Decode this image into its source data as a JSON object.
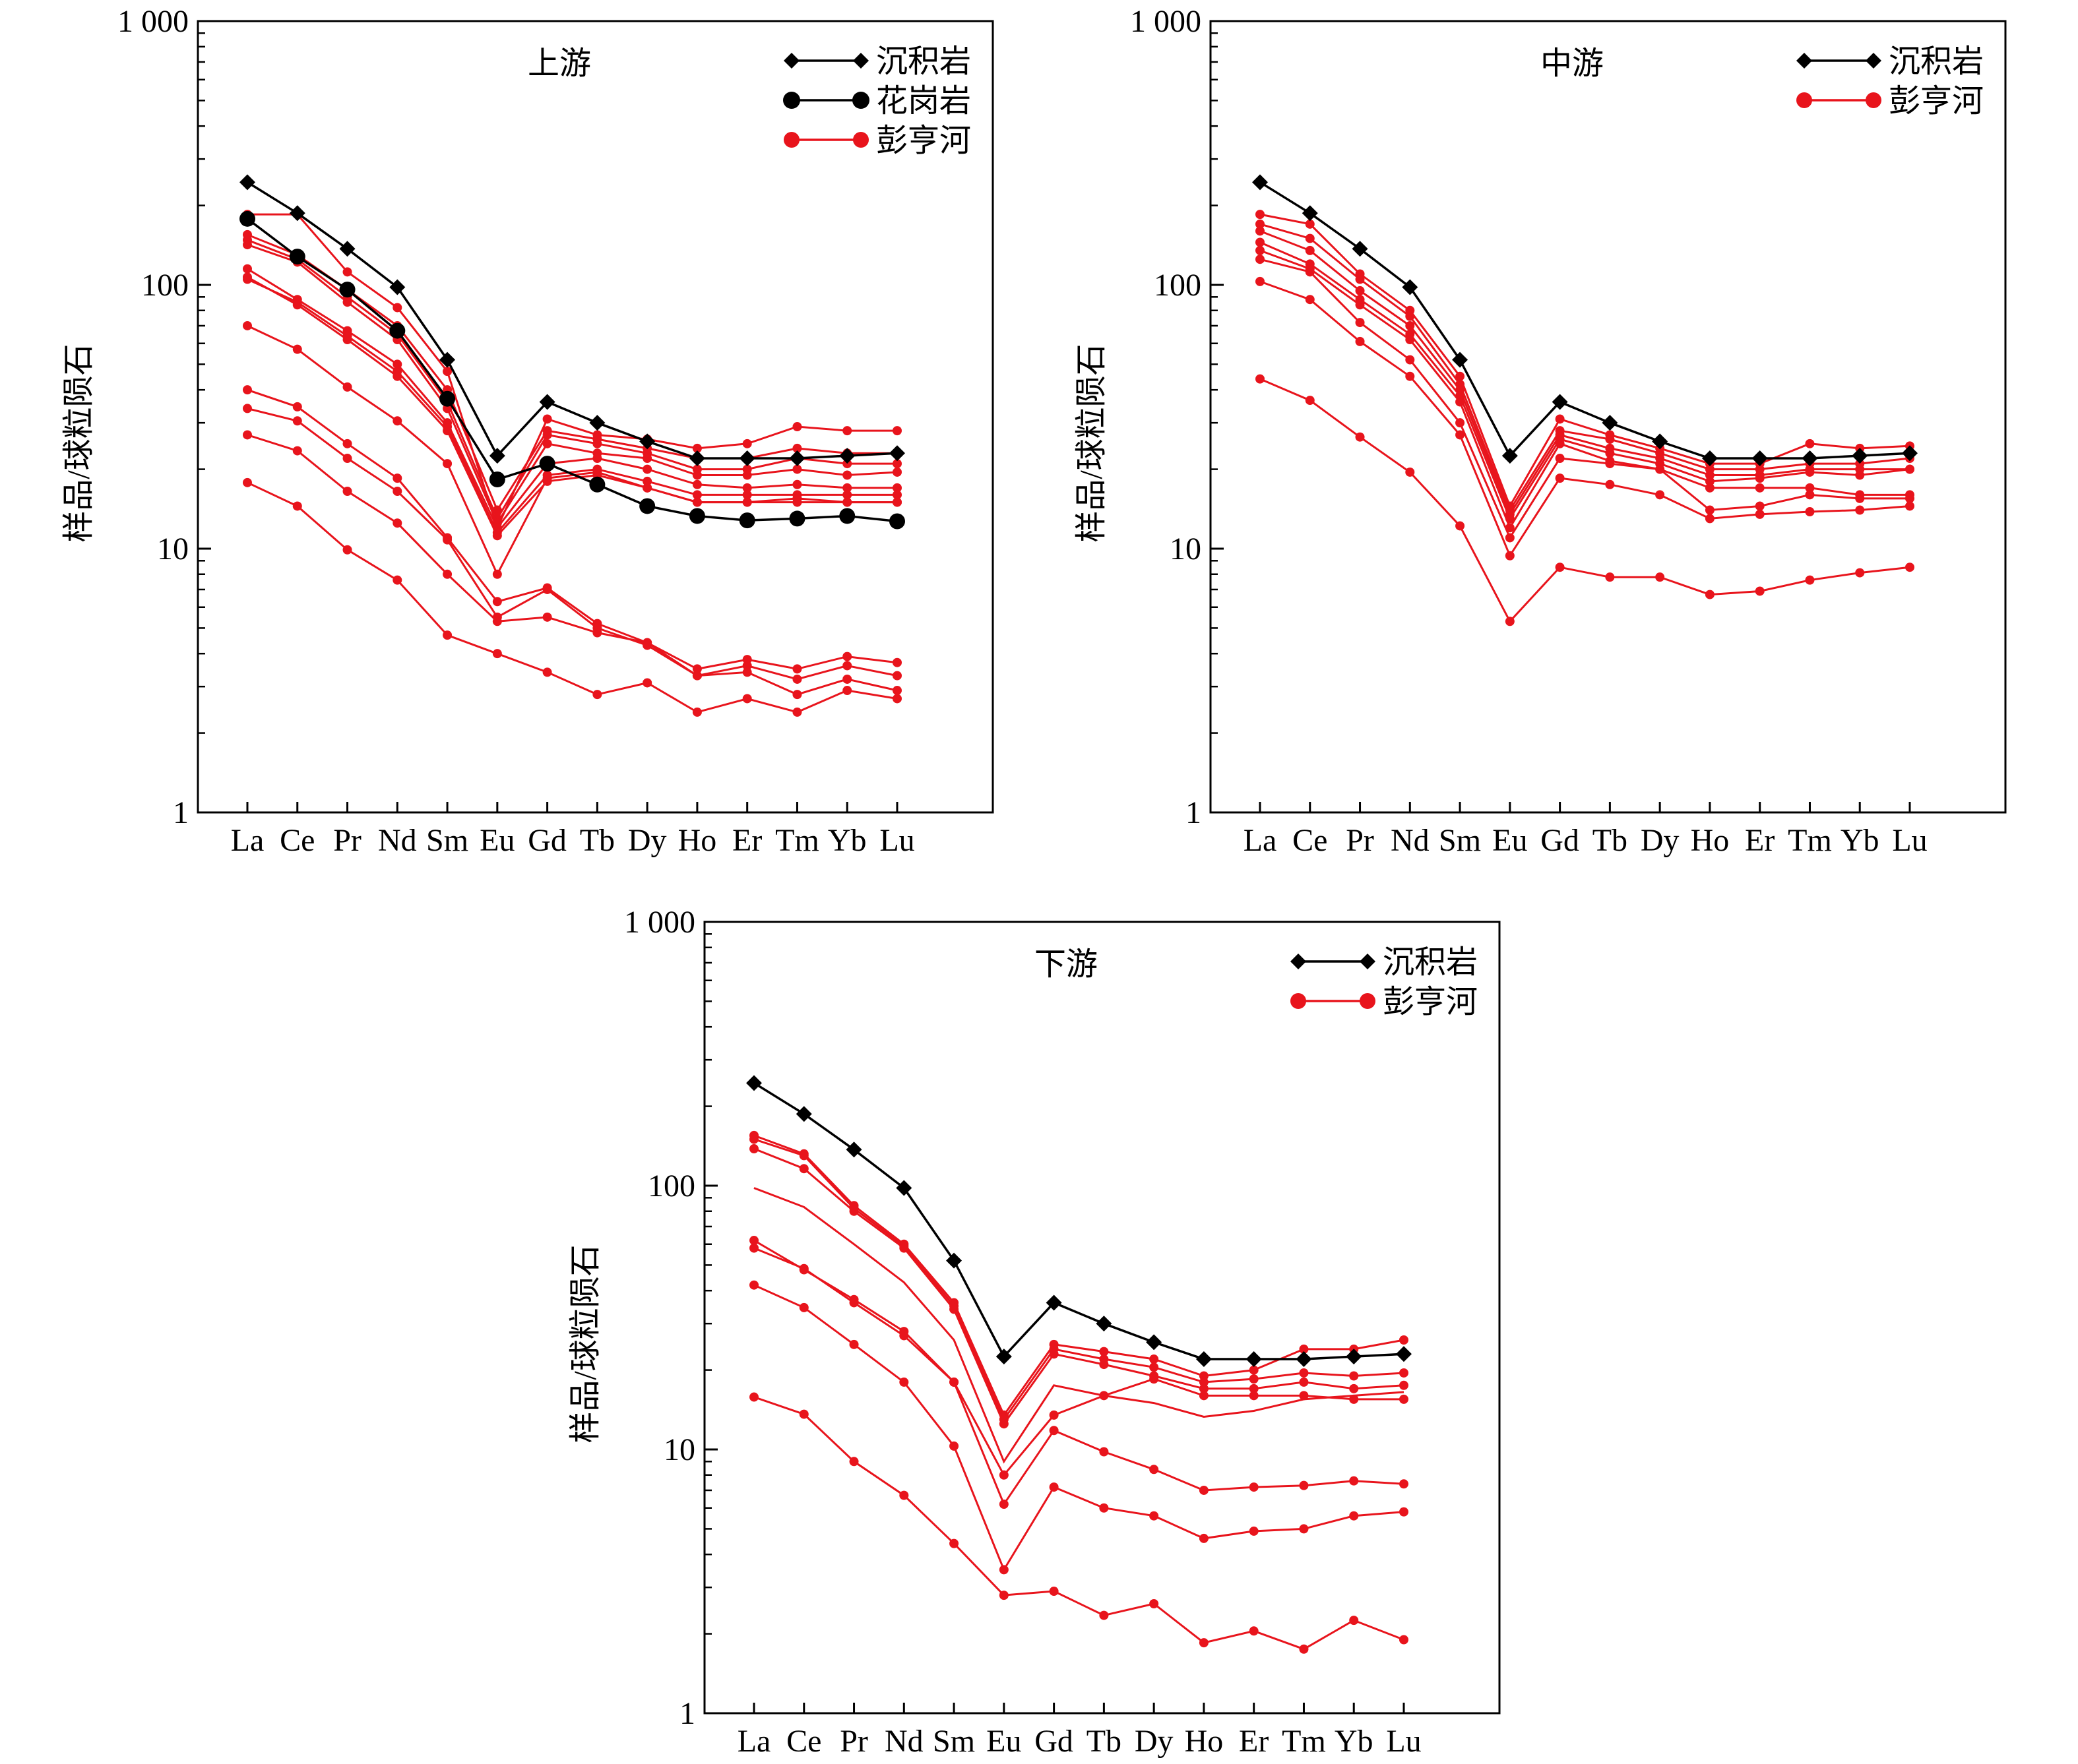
{
  "figure": {
    "colors": {
      "sediment": "#000000",
      "granite": "#000000",
      "river": "#e8141c"
    },
    "categories": [
      "La",
      "Ce",
      "Pr",
      "Nd",
      "Sm",
      "Eu",
      "Gd",
      "Tb",
      "Dy",
      "Ho",
      "Er",
      "Tm",
      "Yb",
      "Lu"
    ],
    "ytick_labels": [
      "1",
      "10",
      "100",
      "1 000"
    ],
    "ylabel": "样品/球粒陨石"
  },
  "chart_data": [
    {
      "type": "line",
      "title": "上游",
      "ylabel": "样品/球粒陨石",
      "ylim": [
        1,
        1000
      ],
      "yscale": "log",
      "categories": [
        "La",
        "Ce",
        "Pr",
        "Nd",
        "Sm",
        "Eu",
        "Gd",
        "Tb",
        "Dy",
        "Ho",
        "Er",
        "Tm",
        "Yb",
        "Lu"
      ],
      "legend": [
        "沉积岩",
        "花岗岩",
        "彭亨河"
      ],
      "legend_position": "top-right",
      "series": [
        {
          "name": "沉积岩",
          "style": "sediment",
          "values": [
            245,
            187,
            137,
            98,
            52,
            22.5,
            36,
            30,
            25.5,
            22,
            22,
            22,
            22.5,
            23
          ]
        },
        {
          "name": "花岗岩",
          "style": "granite",
          "values": [
            178,
            128,
            96,
            67,
            37,
            18.3,
            21,
            17.5,
            14.5,
            13.3,
            12.8,
            13,
            13.3,
            12.7
          ]
        },
        {
          "name": "彭亨河",
          "style": "river",
          "values": [
            185,
            185,
            112,
            82,
            47,
            12,
            31,
            27,
            26,
            24,
            25,
            29,
            28,
            28
          ]
        },
        {
          "name": "彭亨河",
          "style": "river",
          "values": [
            155,
            130,
            96,
            70,
            40,
            14,
            28,
            26,
            24,
            22,
            22,
            24,
            23,
            23
          ]
        },
        {
          "name": "彭亨河",
          "style": "river",
          "values": [
            148,
            125,
            90,
            65,
            36,
            13,
            27,
            25,
            23,
            20,
            20,
            22,
            21,
            21
          ]
        },
        {
          "name": "彭亨河",
          "style": "river",
          "values": [
            142,
            122,
            86,
            62,
            34,
            12.5,
            25,
            23,
            22,
            19,
            19,
            20,
            19,
            19.5
          ]
        },
        {
          "name": "彭亨河",
          "style": "river",
          "values": [
            115,
            88,
            67,
            50,
            30,
            12,
            21,
            22,
            20,
            17.5,
            17,
            17.5,
            17,
            17
          ]
        },
        {
          "name": "彭亨河",
          "style": "river",
          "values": [
            105,
            86,
            64,
            47,
            29,
            11.5,
            19,
            20,
            18,
            16,
            16,
            16,
            16,
            16
          ]
        },
        {
          "name": "彭亨河",
          "style": "river",
          "values": [
            107,
            84,
            62,
            45,
            28,
            11.2,
            18,
            19,
            17,
            15,
            15,
            15.5,
            15,
            15
          ]
        },
        {
          "name": "彭亨河",
          "style": "river",
          "values": [
            70,
            57,
            41,
            30.5,
            21,
            8,
            18.5,
            19.5,
            17,
            15,
            15,
            15,
            15,
            15
          ]
        },
        {
          "name": "彭亨河",
          "style": "river",
          "values": [
            40,
            34.5,
            25,
            18.5,
            11,
            6.3,
            7.1,
            5.2,
            4.4,
            3.5,
            3.8,
            3.5,
            3.9,
            3.7
          ]
        },
        {
          "name": "彭亨河",
          "style": "river",
          "values": [
            34,
            30.5,
            22,
            16.5,
            10.8,
            5.5,
            7,
            5,
            4.3,
            3.3,
            3.6,
            3.2,
            3.6,
            3.3
          ]
        },
        {
          "name": "彭亨河",
          "style": "river",
          "values": [
            27,
            23.5,
            16.5,
            12.5,
            8,
            5.3,
            5.5,
            4.8,
            4.4,
            3.3,
            3.4,
            2.8,
            3.2,
            2.9
          ]
        },
        {
          "name": "彭亨河",
          "style": "river",
          "values": [
            17.8,
            14.5,
            9.9,
            7.6,
            4.7,
            4,
            3.4,
            2.8,
            3.1,
            2.4,
            2.7,
            2.4,
            2.9,
            2.7
          ]
        }
      ]
    },
    {
      "type": "line",
      "title": "中游",
      "ylabel": "样品/球粒陨石",
      "ylim": [
        1,
        1000
      ],
      "yscale": "log",
      "categories": [
        "La",
        "Ce",
        "Pr",
        "Nd",
        "Sm",
        "Eu",
        "Gd",
        "Tb",
        "Dy",
        "Ho",
        "Er",
        "Tm",
        "Yb",
        "Lu"
      ],
      "legend": [
        "沉积岩",
        "彭亨河"
      ],
      "legend_position": "top-right",
      "series": [
        {
          "name": "沉积岩",
          "style": "sediment",
          "values": [
            245,
            187,
            137,
            98,
            52,
            22.5,
            36,
            30,
            25.5,
            22,
            22,
            22,
            22.5,
            23
          ]
        },
        {
          "name": "彭亨河",
          "style": "river",
          "values": [
            185,
            170,
            110,
            80,
            45,
            14.5,
            31,
            27,
            24,
            21,
            21,
            25,
            24,
            24.5
          ]
        },
        {
          "name": "彭亨河",
          "style": "river",
          "values": [
            170,
            150,
            105,
            76,
            42,
            14,
            28,
            26,
            23,
            20,
            20,
            21,
            21,
            22
          ]
        },
        {
          "name": "彭亨河",
          "style": "river",
          "values": [
            160,
            135,
            95,
            70,
            40,
            13.5,
            27,
            24,
            22,
            19,
            19,
            20,
            20,
            20
          ]
        },
        {
          "name": "彭亨河",
          "style": "river",
          "values": [
            145,
            120,
            88,
            65,
            38,
            13,
            26,
            23,
            21,
            18,
            18.5,
            19.5,
            19,
            20
          ]
        },
        {
          "name": "彭亨河",
          "style": "river",
          "values": [
            135,
            115,
            84,
            62,
            36,
            12,
            25,
            21.5,
            20,
            17,
            17,
            17,
            16,
            16
          ]
        },
        {
          "name": "彭亨河",
          "style": "river",
          "values": [
            125,
            112,
            72,
            52,
            30,
            11,
            22,
            21,
            20,
            14,
            14.5,
            16,
            15.5,
            15.5
          ]
        },
        {
          "name": "彭亨河",
          "style": "river",
          "values": [
            103,
            88,
            61,
            45,
            27,
            9.4,
            18.5,
            17.5,
            16,
            13,
            13.5,
            13.8,
            14,
            14.5
          ]
        },
        {
          "name": "彭亨河",
          "style": "river",
          "values": [
            44,
            36.5,
            26.5,
            19.5,
            12.2,
            5.3,
            8.5,
            7.8,
            7.8,
            6.7,
            6.9,
            7.6,
            8.1,
            8.5
          ]
        }
      ]
    },
    {
      "type": "line",
      "title": "下游",
      "ylabel": "样品/球粒陨石",
      "ylim": [
        1,
        1000
      ],
      "yscale": "log",
      "categories": [
        "La",
        "Ce",
        "Pr",
        "Nd",
        "Sm",
        "Eu",
        "Gd",
        "Tb",
        "Dy",
        "Ho",
        "Er",
        "Tm",
        "Yb",
        "Lu"
      ],
      "legend": [
        "沉积岩",
        "彭亨河"
      ],
      "legend_position": "top-right",
      "series": [
        {
          "name": "沉积岩",
          "style": "sediment",
          "values": [
            245,
            187,
            137,
            98,
            52,
            22.5,
            36,
            30,
            25.5,
            22,
            22,
            22,
            22.5,
            23
          ]
        },
        {
          "name": "彭亨河",
          "style": "river",
          "values": [
            155,
            132,
            84,
            60,
            36,
            13.5,
            25,
            23.5,
            22,
            19,
            20,
            24,
            24,
            26
          ]
        },
        {
          "name": "彭亨河",
          "style": "river",
          "values": [
            150,
            130,
            82,
            59,
            35,
            13,
            24,
            22,
            20.5,
            18,
            18.5,
            19.5,
            19,
            19.5
          ]
        },
        {
          "name": "彭亨河",
          "style": "river",
          "values": [
            138,
            116,
            80,
            58,
            34,
            12.5,
            23,
            21,
            19,
            17,
            17,
            18,
            17,
            17.5
          ]
        },
        {
          "name": "彭亨河",
          "style": "river",
          "values": [
            98,
            83,
            60,
            43,
            26,
            9,
            17.5,
            16,
            15,
            13.3,
            14,
            15.5,
            16,
            16.5
          ],
          "markers": false
        },
        {
          "name": "彭亨河",
          "style": "river",
          "values": [
            62,
            48,
            37,
            28,
            18,
            8,
            13.5,
            16,
            18.5,
            16,
            16,
            16,
            15.5,
            15.5
          ]
        },
        {
          "name": "彭亨河",
          "style": "river",
          "values": [
            58,
            48.5,
            36,
            27,
            18,
            6.2,
            11.8,
            9.8,
            8.4,
            7,
            7.2,
            7.3,
            7.6,
            7.4
          ]
        },
        {
          "name": "彭亨河",
          "style": "river",
          "values": [
            42,
            34.5,
            25,
            18,
            10.3,
            3.5,
            7.2,
            6,
            5.6,
            4.6,
            4.9,
            5,
            5.6,
            5.8
          ]
        },
        {
          "name": "彭亨河",
          "style": "river",
          "values": [
            15.8,
            13.6,
            9,
            6.7,
            4.4,
            2.8,
            2.9,
            2.35,
            2.6,
            1.85,
            2.05,
            1.75,
            2.25,
            1.9
          ]
        }
      ]
    }
  ]
}
